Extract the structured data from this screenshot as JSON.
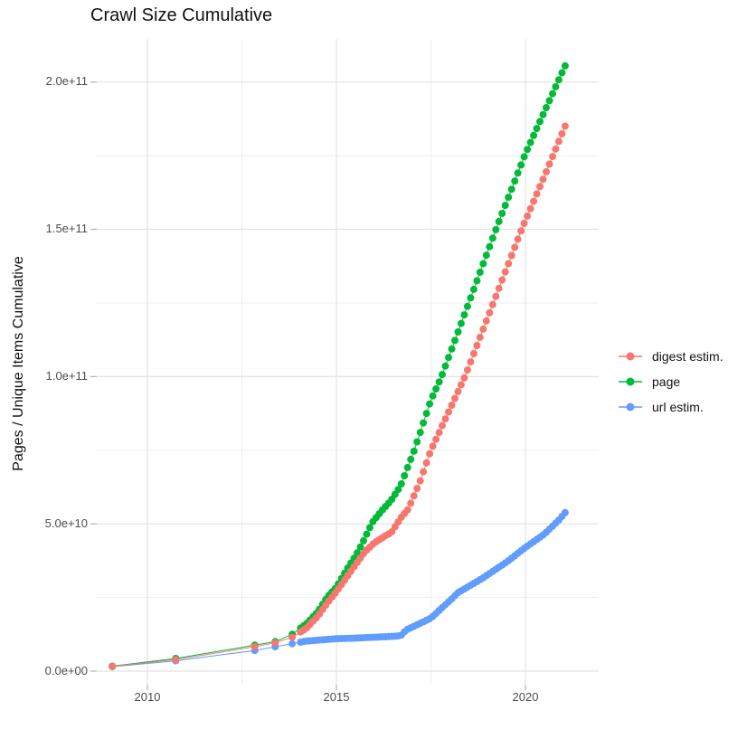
{
  "title": "Crawl Size Cumulative",
  "y_axis_title": "Pages / Unique Items Cumulative",
  "legend": {
    "items": [
      {
        "label": "digest estim.",
        "color": "#F8766D"
      },
      {
        "label": "page",
        "color": "#00BA38"
      },
      {
        "label": "url estim.",
        "color": "#619CFF"
      }
    ]
  },
  "chart_data": {
    "type": "scatter",
    "title": "Crawl Size Cumulative",
    "xlabel": "",
    "ylabel": "Pages / Unique Items Cumulative",
    "legend_position": "right",
    "grid": "on",
    "xlim": [
      2008.66,
      2021.94
    ],
    "ylim": [
      -4600000000.0,
      214600000000.0
    ],
    "x_ticks": [
      2010,
      2015,
      2020
    ],
    "x_tick_labels": [
      "2010",
      "2015",
      "2020"
    ],
    "x_minor_ticks": [
      2012.5,
      2017.5
    ],
    "y_ticks": [
      0,
      50000000000.0,
      100000000000.0,
      150000000000.0,
      200000000000.0
    ],
    "y_tick_labels": [
      "0.0e+00",
      "5.0e+10",
      "1.0e+11",
      "1.5e+11",
      "2.0e+11"
    ],
    "y_minor_ticks": [
      25000000000.0,
      75000000000.0,
      125000000000.0,
      175000000000.0
    ],
    "value_unit": 1000000000.0,
    "value_note": "all point values below are in billions (multiply by value_unit); points drawn = early_points plus monthly samples linearly interpolated through anchors",
    "monthly": {
      "start": 2014.05,
      "end": 2021.05,
      "step": 0.0833333
    },
    "series": [
      {
        "name": "digest estim.",
        "color": "#F8766D",
        "early_points": [
          [
            2009.07,
            1.6
          ],
          [
            2010.75,
            3.9
          ],
          [
            2012.84,
            8.3
          ],
          [
            2013.38,
            9.6
          ],
          [
            2013.83,
            11.5
          ]
        ],
        "anchors": [
          [
            2013.83,
            11.5
          ],
          [
            2014.2,
            14.5
          ],
          [
            2014.5,
            18.5
          ],
          [
            2014.75,
            23
          ],
          [
            2015,
            27
          ],
          [
            2015.25,
            31.5
          ],
          [
            2015.5,
            36
          ],
          [
            2015.75,
            40.5
          ],
          [
            2016,
            43.5
          ],
          [
            2016.3,
            46
          ],
          [
            2016.45,
            47
          ],
          [
            2016.7,
            52
          ],
          [
            2016.9,
            55
          ],
          [
            2017.2,
            64
          ],
          [
            2017.5,
            75
          ],
          [
            2018.4,
            100
          ],
          [
            2019.9,
            150
          ],
          [
            2020.5,
            168
          ],
          [
            2021.05,
            185
          ]
        ]
      },
      {
        "name": "page",
        "color": "#00BA38",
        "early_points": [
          [
            2009.07,
            1.7
          ],
          [
            2010.75,
            4.3
          ],
          [
            2012.84,
            8.8
          ],
          [
            2013.38,
            10
          ],
          [
            2013.83,
            12.5
          ]
        ],
        "anchors": [
          [
            2013.83,
            12.5
          ],
          [
            2014.2,
            16
          ],
          [
            2014.5,
            20
          ],
          [
            2014.75,
            25
          ],
          [
            2015,
            28.5
          ],
          [
            2015.25,
            34
          ],
          [
            2015.5,
            39
          ],
          [
            2015.67,
            43
          ],
          [
            2015.95,
            50.5
          ],
          [
            2016.2,
            54.5
          ],
          [
            2016.45,
            58
          ],
          [
            2016.7,
            63
          ],
          [
            2017.06,
            75
          ],
          [
            2017.5,
            92
          ],
          [
            2017.78,
            100
          ],
          [
            2019.22,
            150
          ],
          [
            2020,
            175.7
          ],
          [
            2021.05,
            205.5
          ]
        ]
      },
      {
        "name": "url estim.",
        "color": "#619CFF",
        "early_points": [
          [
            2009.07,
            1.5
          ],
          [
            2010.75,
            3.5
          ],
          [
            2012.84,
            7
          ],
          [
            2013.38,
            8.3
          ],
          [
            2013.83,
            9.3
          ]
        ],
        "anchors": [
          [
            2013.83,
            9.3
          ],
          [
            2014.2,
            10.2
          ],
          [
            2014.5,
            10.5
          ],
          [
            2015,
            11
          ],
          [
            2015.5,
            11.2
          ],
          [
            2016,
            11.5
          ],
          [
            2016.5,
            11.8
          ],
          [
            2016.7,
            12
          ],
          [
            2016.85,
            14
          ],
          [
            2017.1,
            15.5
          ],
          [
            2017.5,
            18
          ],
          [
            2018.05,
            24.5
          ],
          [
            2018.2,
            26.5
          ],
          [
            2018.86,
            31.5
          ],
          [
            2019.5,
            37
          ],
          [
            2020,
            42
          ],
          [
            2020.5,
            46.5
          ],
          [
            2020.9,
            51.5
          ],
          [
            2021.05,
            53.8
          ]
        ]
      }
    ]
  }
}
